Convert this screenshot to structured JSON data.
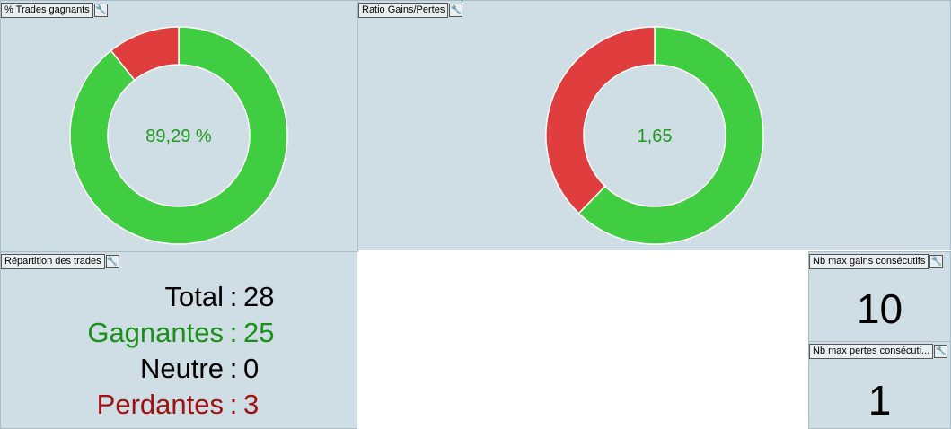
{
  "panels": {
    "win_rate": {
      "title": "% Trades gagnants",
      "values": [
        89.29,
        10.71
      ],
      "colors": [
        "#41cd41",
        "#e03e3e"
      ],
      "center_label": "89,29 %"
    },
    "ratio": {
      "title": "Ratio Gains/Pertes",
      "values": [
        62.3,
        37.7
      ],
      "colors": [
        "#41cd41",
        "#e03e3e"
      ],
      "center_label": "1,65"
    },
    "breakdown": {
      "title": "Répartition des trades",
      "separator": ":",
      "rows": [
        {
          "label": "Total",
          "value": 28,
          "color": "#000000"
        },
        {
          "label": "Gagnantes",
          "value": 25,
          "color": "#1a8f1a"
        },
        {
          "label": "Neutre",
          "value": 0,
          "color": "#000000"
        },
        {
          "label": "Perdantes",
          "value": 3,
          "color": "#a01010"
        }
      ]
    },
    "max_wins": {
      "title": "Nb max gains consécutifs",
      "value": 10
    },
    "max_losses": {
      "title": "Nb max pertes consécuti...",
      "value": 1
    }
  }
}
